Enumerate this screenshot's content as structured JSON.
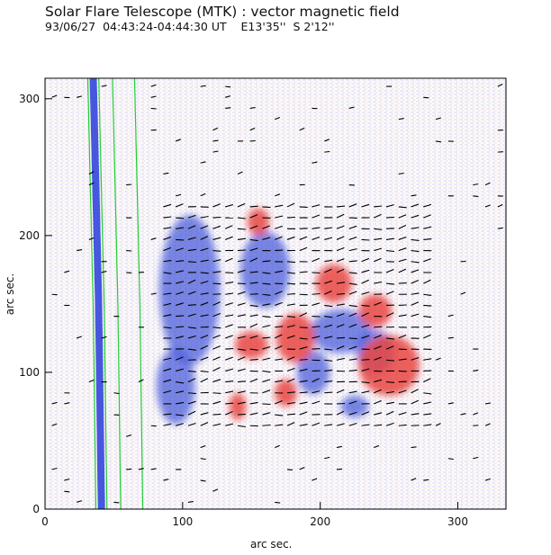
{
  "figure": {
    "title": "Solar Flare Telescope (MTK) : vector magnetic field",
    "subtitle": "93/06/27  04:43:24-04:44:30 UT    E13'35''  S 2'12''",
    "xlabel": "arc sec.",
    "ylabel": "arc sec.",
    "x_ticks": [
      "0",
      "100",
      "200",
      "300"
    ],
    "y_ticks": [
      "0",
      "100",
      "200",
      "300"
    ],
    "x_range": [
      0,
      335
    ],
    "y_range": [
      0,
      315
    ]
  },
  "colors": {
    "positive_polarity": "#e8322e",
    "negative_polarity": "#3b4fd8",
    "contour": "#22cc33",
    "limb": "#1a2fd8",
    "vectors": "#000000",
    "background": "#ffffff"
  },
  "regions": {
    "negative": [
      {
        "cx": 160,
        "cy": 175,
        "rx": 18,
        "ry": 28
      },
      {
        "cx": 105,
        "cy": 160,
        "rx": 22,
        "ry": 55
      },
      {
        "cx": 215,
        "cy": 130,
        "rx": 22,
        "ry": 16
      },
      {
        "cx": 240,
        "cy": 115,
        "rx": 14,
        "ry": 16
      },
      {
        "cx": 195,
        "cy": 100,
        "rx": 12,
        "ry": 16
      },
      {
        "cx": 225,
        "cy": 75,
        "rx": 10,
        "ry": 8
      },
      {
        "cx": 95,
        "cy": 90,
        "rx": 14,
        "ry": 28
      }
    ],
    "positive": [
      {
        "cx": 210,
        "cy": 165,
        "rx": 13,
        "ry": 14
      },
      {
        "cx": 155,
        "cy": 210,
        "rx": 8,
        "ry": 10
      },
      {
        "cx": 182,
        "cy": 125,
        "rx": 14,
        "ry": 18
      },
      {
        "cx": 150,
        "cy": 120,
        "rx": 12,
        "ry": 10
      },
      {
        "cx": 250,
        "cy": 105,
        "rx": 22,
        "ry": 22
      },
      {
        "cx": 240,
        "cy": 145,
        "rx": 12,
        "ry": 12
      },
      {
        "cx": 175,
        "cy": 85,
        "rx": 8,
        "ry": 10
      },
      {
        "cx": 140,
        "cy": 75,
        "rx": 6,
        "ry": 10
      }
    ]
  }
}
